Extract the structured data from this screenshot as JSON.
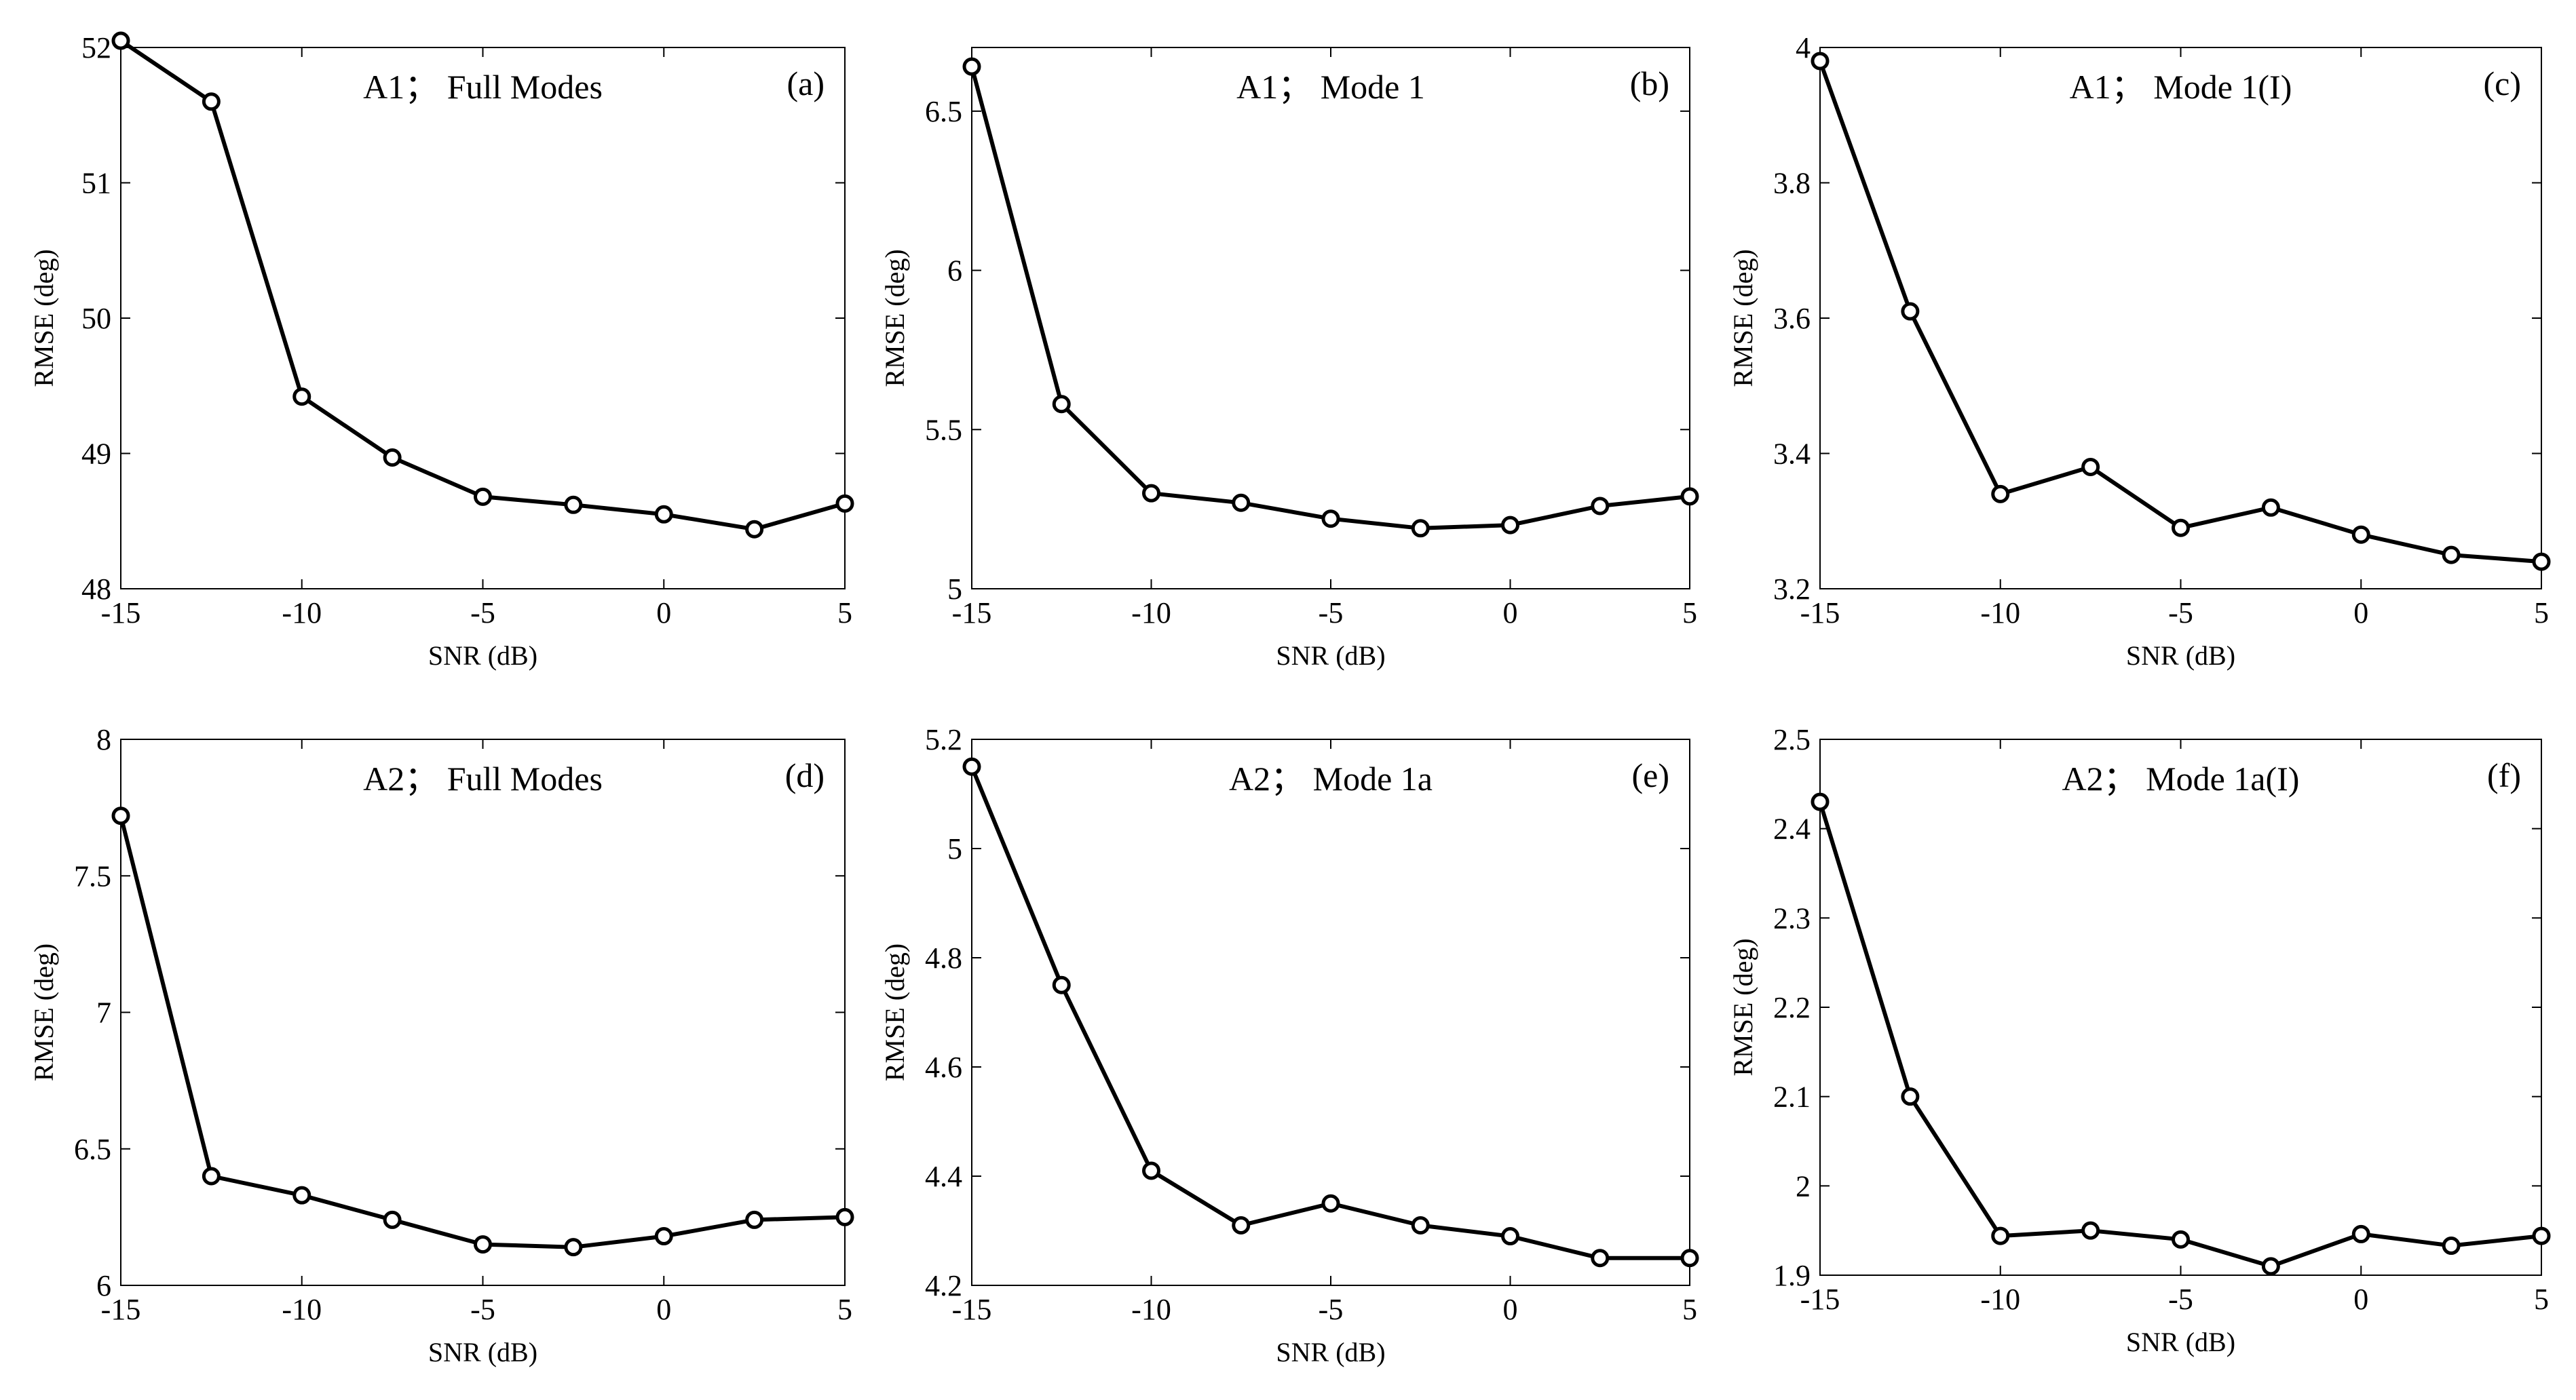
{
  "chart_data": [
    {
      "type": "line",
      "title": "A1；  Full Modes",
      "tag": "(a)",
      "xlabel": "SNR (dB)",
      "ylabel": "RMSE (deg)",
      "xlim": [
        -15,
        5
      ],
      "ylim": [
        48,
        52
      ],
      "xticks": [
        -15,
        -10,
        -5,
        0,
        5
      ],
      "yticks": [
        48,
        49,
        50,
        51,
        52
      ],
      "x": [
        -15,
        -12.5,
        -10,
        -7.5,
        -5,
        -2.5,
        0,
        2.5,
        5
      ],
      "y": [
        52.05,
        51.6,
        49.42,
        48.97,
        48.68,
        48.62,
        48.55,
        48.44,
        48.63
      ]
    },
    {
      "type": "line",
      "title": "A1；  Mode 1",
      "tag": "(b)",
      "xlabel": "SNR (dB)",
      "ylabel": "RMSE (deg)",
      "xlim": [
        -15,
        5
      ],
      "ylim": [
        5,
        6.7
      ],
      "xticks": [
        -15,
        -10,
        -5,
        0,
        5
      ],
      "yticks": [
        5,
        5.5,
        6,
        6.5
      ],
      "x": [
        -15,
        -12.5,
        -10,
        -7.5,
        -5,
        -2.5,
        0,
        2.5,
        5
      ],
      "y": [
        6.64,
        5.58,
        5.3,
        5.27,
        5.22,
        5.19,
        5.2,
        5.26,
        5.29
      ]
    },
    {
      "type": "line",
      "title": "A1；  Mode 1(I)",
      "tag": "(c)",
      "xlabel": "SNR (dB)",
      "ylabel": "RMSE (deg)",
      "xlim": [
        -15,
        5
      ],
      "ylim": [
        3.2,
        4
      ],
      "xticks": [
        -15,
        -10,
        -5,
        0,
        5
      ],
      "yticks": [
        3.2,
        3.4,
        3.6,
        3.8,
        4
      ],
      "x": [
        -15,
        -12.5,
        -10,
        -7.5,
        -5,
        -2.5,
        0,
        2.5,
        5
      ],
      "y": [
        3.98,
        3.61,
        3.34,
        3.38,
        3.29,
        3.32,
        3.28,
        3.25,
        3.24
      ]
    },
    {
      "type": "line",
      "title": "A2；  Full Modes",
      "tag": "(d)",
      "xlabel": "SNR (dB)",
      "ylabel": "RMSE (deg)",
      "xlim": [
        -15,
        5
      ],
      "ylim": [
        6,
        8
      ],
      "xticks": [
        -15,
        -10,
        -5,
        0,
        5
      ],
      "yticks": [
        6,
        6.5,
        7,
        7.5,
        8
      ],
      "x": [
        -15,
        -12.5,
        -10,
        -7.5,
        -5,
        -2.5,
        0,
        2.5,
        5
      ],
      "y": [
        7.72,
        6.4,
        6.33,
        6.24,
        6.15,
        6.14,
        6.18,
        6.24,
        6.25
      ]
    },
    {
      "type": "line",
      "title": "A2；  Mode 1a",
      "tag": "(e)",
      "xlabel": "SNR (dB)",
      "ylabel": "RMSE (deg)",
      "xlim": [
        -15,
        5
      ],
      "ylim": [
        4.2,
        5.2
      ],
      "xticks": [
        -15,
        -10,
        -5,
        0,
        5
      ],
      "yticks": [
        4.2,
        4.4,
        4.6,
        4.8,
        5,
        5.2
      ],
      "x": [
        -15,
        -12.5,
        -10,
        -7.5,
        -5,
        -2.5,
        0,
        2.5,
        5
      ],
      "y": [
        5.15,
        4.75,
        4.41,
        4.31,
        4.35,
        4.31,
        4.29,
        4.25,
        4.25
      ]
    },
    {
      "type": "line",
      "title": "A2；  Mode 1a(I)",
      "tag": "(f)",
      "xlabel": "SNR (dB)",
      "ylabel": "RMSE (deg)",
      "xlim": [
        -15,
        5
      ],
      "ylim": [
        1.9,
        2.5
      ],
      "xticks": [
        -15,
        -10,
        -5,
        0,
        5
      ],
      "yticks": [
        1.9,
        2,
        2.1,
        2.2,
        2.3,
        2.4,
        2.5
      ],
      "x": [
        -15,
        -12.5,
        -10,
        -7.5,
        -5,
        -2.5,
        0,
        2.5,
        5
      ],
      "y": [
        2.43,
        2.1,
        1.944,
        1.95,
        1.94,
        1.91,
        1.946,
        1.933,
        1.944
      ]
    }
  ]
}
